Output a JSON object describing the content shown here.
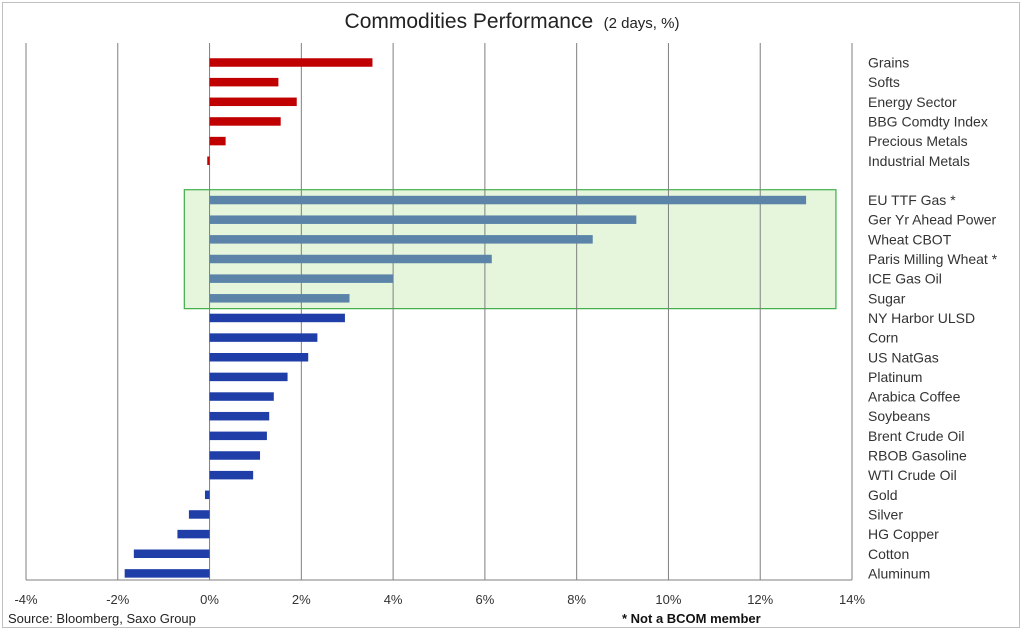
{
  "chart_data": {
    "type": "bar",
    "orientation": "horizontal",
    "title": "Commodities Performance",
    "subtitle": "(2 days, %)",
    "xlim": [
      -4,
      14
    ],
    "x_ticks": [
      -4,
      -2,
      0,
      2,
      4,
      6,
      8,
      10,
      12,
      14
    ],
    "x_tick_labels": [
      "-4%",
      "-2%",
      "0%",
      "2%",
      "4%",
      "6%",
      "8%",
      "10%",
      "12%",
      "14%"
    ],
    "grid": true,
    "colors": {
      "sector": "#c00000",
      "highlight": "#5b84a8",
      "commodity": "#1f3ea8",
      "highlight_box_fill": "#e6f6dc",
      "highlight_box_border": "#3fae49"
    },
    "categories": [
      {
        "label": "Grains",
        "value": 3.55,
        "group": "sector"
      },
      {
        "label": "Softs",
        "value": 1.5,
        "group": "sector"
      },
      {
        "label": "Energy Sector",
        "value": 1.9,
        "group": "sector"
      },
      {
        "label": "BBG Comdty Index",
        "value": 1.55,
        "group": "sector"
      },
      {
        "label": "Precious Metals",
        "value": 0.35,
        "group": "sector"
      },
      {
        "label": "Industrial Metals",
        "value": -0.05,
        "group": "sector"
      },
      {
        "label": "",
        "value": null,
        "group": "gap"
      },
      {
        "label": "EU TTF Gas *",
        "value": 13.0,
        "group": "highlight"
      },
      {
        "label": "Ger Yr Ahead Power",
        "value": 9.3,
        "group": "highlight"
      },
      {
        "label": "Wheat CBOT",
        "value": 8.35,
        "group": "highlight"
      },
      {
        "label": "Paris Milling Wheat *",
        "value": 6.15,
        "group": "highlight"
      },
      {
        "label": "ICE Gas Oil",
        "value": 4.0,
        "group": "highlight"
      },
      {
        "label": "Sugar",
        "value": 3.05,
        "group": "highlight"
      },
      {
        "label": "NY Harbor ULSD",
        "value": 2.95,
        "group": "commodity"
      },
      {
        "label": "Corn",
        "value": 2.35,
        "group": "commodity"
      },
      {
        "label": "US NatGas",
        "value": 2.15,
        "group": "commodity"
      },
      {
        "label": "Platinum",
        "value": 1.7,
        "group": "commodity"
      },
      {
        "label": "Arabica Coffee",
        "value": 1.4,
        "group": "commodity"
      },
      {
        "label": "Soybeans",
        "value": 1.3,
        "group": "commodity"
      },
      {
        "label": "Brent Crude Oil",
        "value": 1.25,
        "group": "commodity"
      },
      {
        "label": "RBOB Gasoline",
        "value": 1.1,
        "group": "commodity"
      },
      {
        "label": "WTI Crude Oil",
        "value": 0.95,
        "group": "commodity"
      },
      {
        "label": "Gold",
        "value": -0.1,
        "group": "commodity"
      },
      {
        "label": "Silver",
        "value": -0.45,
        "group": "commodity"
      },
      {
        "label": "HG Copper",
        "value": -0.7,
        "group": "commodity"
      },
      {
        "label": "Cotton",
        "value": -1.65,
        "group": "commodity"
      },
      {
        "label": "Aluminum",
        "value": -1.85,
        "group": "commodity"
      }
    ],
    "highlight_box": {
      "x_from": -0.55,
      "x_to": 13.65
    }
  },
  "footer": {
    "source": "Source: Bloomberg, Saxo Group",
    "note": "* Not a BCOM member"
  }
}
